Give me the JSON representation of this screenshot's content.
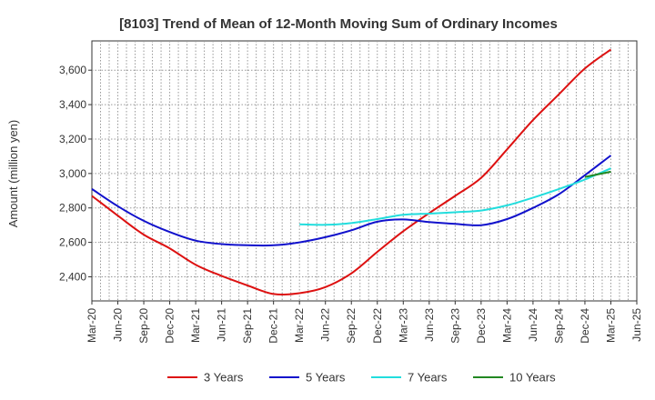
{
  "chart_data": {
    "type": "line",
    "title": "[8103]  Trend of Mean of 12-Month Moving Sum of Ordinary Incomes",
    "ylabel": "Amount (million yen)",
    "xlabel": "",
    "ylim": [
      2260,
      3770
    ],
    "yticks": [
      2400,
      2600,
      2800,
      3000,
      3200,
      3400,
      3600
    ],
    "ytick_labels": [
      "2,400",
      "2,600",
      "2,800",
      "3,000",
      "3,200",
      "3,400",
      "3,600"
    ],
    "x_categories": [
      "Mar-20",
      "Jun-20",
      "Sep-20",
      "Dec-20",
      "Mar-21",
      "Jun-21",
      "Sep-21",
      "Dec-21",
      "Mar-22",
      "Jun-22",
      "Sep-22",
      "Dec-22",
      "Mar-23",
      "Jun-23",
      "Sep-23",
      "Dec-23",
      "Mar-24",
      "Jun-24",
      "Sep-24",
      "Dec-24",
      "Mar-25",
      "Jun-25"
    ],
    "grid": true,
    "legend_position": "bottom",
    "series": [
      {
        "name": "3 Years",
        "color": "#dd1111",
        "start_index": 0,
        "values": [
          2870,
          2755,
          2645,
          2565,
          2470,
          2405,
          2350,
          2300,
          2305,
          2340,
          2420,
          2545,
          2665,
          2770,
          2870,
          2975,
          3140,
          3310,
          3460,
          3610,
          3720
        ]
      },
      {
        "name": "5 Years",
        "color": "#1111cc",
        "start_index": 0,
        "values": [
          2910,
          2810,
          2725,
          2660,
          2610,
          2590,
          2583,
          2583,
          2600,
          2630,
          2670,
          2720,
          2733,
          2718,
          2707,
          2700,
          2735,
          2800,
          2880,
          2990,
          3105
        ]
      },
      {
        "name": "7 Years",
        "color": "#22dddd",
        "start_index": 8,
        "values": [
          2705,
          2702,
          2712,
          2735,
          2760,
          2767,
          2775,
          2785,
          2815,
          2860,
          2910,
          2965,
          3030
        ]
      },
      {
        "name": "10 Years",
        "color": "#228822",
        "start_index": 19,
        "values": [
          2980,
          3010
        ]
      }
    ]
  }
}
